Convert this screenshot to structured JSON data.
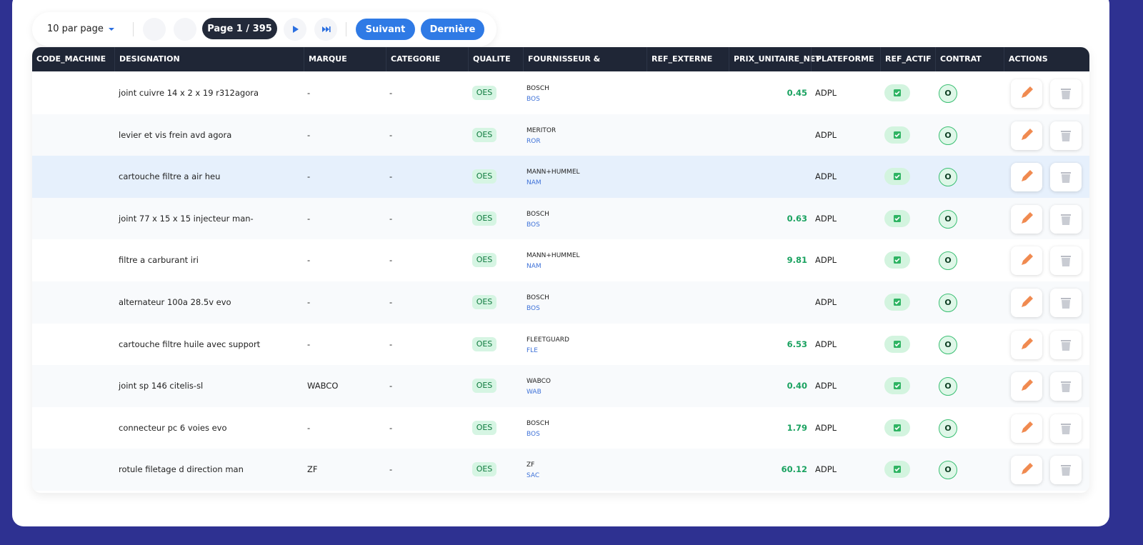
{
  "pagination": {
    "per_page": "10 par page",
    "page": "Page 1 / 395",
    "next": "Suivant",
    "last": "Dernière"
  },
  "table": {
    "headers": [
      "CODE_MACHINE",
      "DESIGNATION",
      "MARQUE",
      "CATEGORIE",
      "QUALITE",
      "FOURNISSEUR & TRIGRAMME",
      "REF_EXTERNE",
      "PRIX_UNITAIRE_NET",
      "PLATEFORME",
      "REF_ACTIF",
      "CONTRAT",
      "ACTIONS"
    ],
    "rows": [
      {
        "designation": "joint cuivre 14 x 2 x 19 r312agora",
        "marque": "-",
        "categorie": "-",
        "qualite": "OES",
        "fournisseur": "BOSCH",
        "trigramme": "BOS",
        "prix": "0.45",
        "plateforme": "ADPL",
        "contrat": "O"
      },
      {
        "designation": "levier et vis frein avd agora",
        "marque": "-",
        "categorie": "-",
        "qualite": "OES",
        "fournisseur": "MERITOR",
        "trigramme": "ROR",
        "plateforme": "ADPL",
        "contrat": "O"
      },
      {
        "designation": "cartouche filtre a air heu",
        "marque": "-",
        "categorie": "-",
        "qualite": "OES",
        "fournisseur": "MANN+HUMMEL",
        "trigramme": "NAM",
        "plateforme": "ADPL",
        "contrat": "O"
      },
      {
        "designation": "joint 77 x 15 x 15 injecteur man-",
        "marque": "-",
        "categorie": "-",
        "qualite": "OES",
        "fournisseur": "BOSCH",
        "trigramme": "BOS",
        "prix": "0.63",
        "plateforme": "ADPL",
        "contrat": "O"
      },
      {
        "designation": "filtre a carburant iri",
        "marque": "-",
        "categorie": "-",
        "qualite": "OES",
        "fournisseur": "MANN+HUMMEL",
        "trigramme": "NAM",
        "prix": "9.81",
        "plateforme": "ADPL",
        "contrat": "O"
      },
      {
        "designation": "alternateur 100a 28.5v evo",
        "marque": "-",
        "categorie": "-",
        "qualite": "OES",
        "fournisseur": "BOSCH",
        "trigramme": "BOS",
        "plateforme": "ADPL",
        "contrat": "O"
      },
      {
        "designation": "cartouche filtre huile avec support",
        "marque": "-",
        "categorie": "-",
        "qualite": "OES",
        "fournisseur": "FLEETGUARD",
        "trigramme": "FLE",
        "prix": "6.53",
        "plateforme": "ADPL",
        "contrat": "O"
      },
      {
        "designation": "joint sp 146 citelis-sl",
        "marque": "WABCO",
        "categorie": "-",
        "qualite": "OES",
        "fournisseur": "WABCO",
        "trigramme": "WAB",
        "prix": "0.40",
        "plateforme": "ADPL",
        "contrat": "O"
      },
      {
        "designation": "connecteur pc 6 voies evo",
        "marque": "-",
        "categorie": "-",
        "qualite": "OES",
        "fournisseur": "BOSCH",
        "trigramme": "BOS",
        "prix": "1.79",
        "plateforme": "ADPL",
        "contrat": "O"
      },
      {
        "designation": "rotule filetage d direction man",
        "marque": "ZF",
        "categorie": "-",
        "qualite": "OES",
        "fournisseur": "ZF",
        "trigramme": "SAC",
        "prix": "60.12",
        "plateforme": "ADPL",
        "contrat": "O"
      }
    ]
  }
}
